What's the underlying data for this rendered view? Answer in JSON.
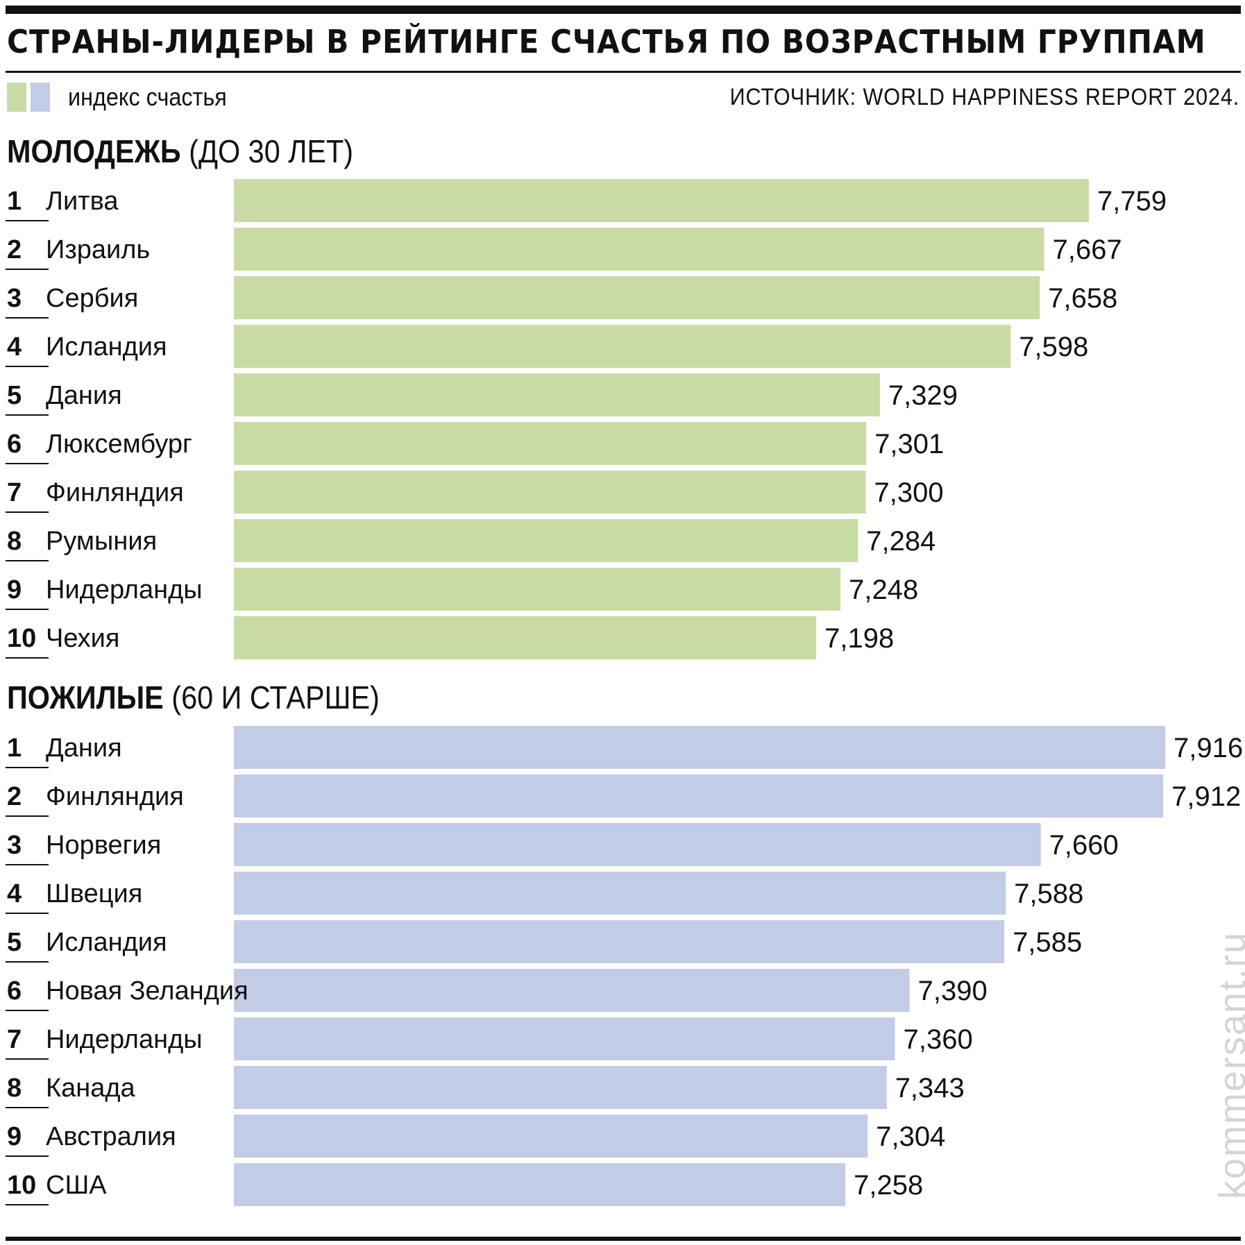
{
  "header": {
    "title": "СТРАНЫ-ЛИДЕРЫ В РЕЙТИНГЕ СЧАСТЬЯ ПО ВОЗРАСТНЫМ ГРУППАМ",
    "legend_label": "индекс счастья",
    "source": "ИСТОЧНИК: WORLD HAPPINESS REPORT 2024."
  },
  "colors": {
    "young_bar": "#c9dba5",
    "old_bar": "#c3cce6",
    "text": "#111111"
  },
  "watermark": "kommersant.ru",
  "chart_data": [
    {
      "type": "bar",
      "orientation": "horizontal",
      "title": "МОЛОДЕЖЬ",
      "subtitle": "(ДО 30 ЛЕТ)",
      "legend": "индекс счастья",
      "grid": false,
      "ranks": [
        "1",
        "2",
        "3",
        "4",
        "5",
        "6",
        "7",
        "8",
        "9",
        "10"
      ],
      "categories": [
        "Литва",
        "Израиль",
        "Сербия",
        "Исландия",
        "Дания",
        "Люксембург",
        "Финляндия",
        "Румыния",
        "Нидерланды",
        "Чехия"
      ],
      "values": [
        7.759,
        7.667,
        7.658,
        7.598,
        7.329,
        7.301,
        7.3,
        7.284,
        7.248,
        7.198
      ],
      "labels": [
        "7,759",
        "7,667",
        "7,658",
        "7,598",
        "7,329",
        "7,301",
        "7,300",
        "7,284",
        "7,248",
        "7,198"
      ],
      "color": "#c9dba5"
    },
    {
      "type": "bar",
      "orientation": "horizontal",
      "title": "ПОЖИЛЫЕ",
      "subtitle": "(60 И СТАРШЕ)",
      "legend": "индекс счастья",
      "grid": false,
      "ranks": [
        "1",
        "2",
        "3",
        "4",
        "5",
        "6",
        "7",
        "8",
        "9",
        "10"
      ],
      "categories": [
        "Дания",
        "Финляндия",
        "Норвегия",
        "Швеция",
        "Исландия",
        "Новая Зеландия",
        "Нидерланды",
        "Канада",
        "Австралия",
        "США"
      ],
      "values": [
        7.916,
        7.912,
        7.66,
        7.588,
        7.585,
        7.39,
        7.36,
        7.343,
        7.304,
        7.258
      ],
      "labels": [
        "7,916",
        "7,912",
        "7,660",
        "7,588",
        "7,585",
        "7,390",
        "7,360",
        "7,343",
        "7,304",
        "7,258"
      ],
      "color": "#c3cce6"
    }
  ]
}
